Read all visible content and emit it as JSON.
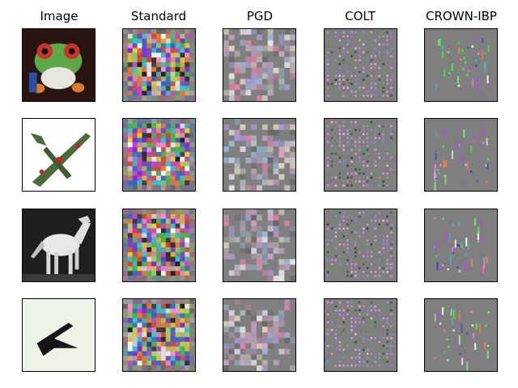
{
  "figure": {
    "columns": [
      {
        "key": "image",
        "title": "Image"
      },
      {
        "key": "standard",
        "title": "Standard"
      },
      {
        "key": "pgd",
        "title": "PGD"
      },
      {
        "key": "colt",
        "title": "COLT"
      },
      {
        "key": "crown_ibp",
        "title": "CROWN-IBP"
      }
    ],
    "rows": [
      {
        "subject": "frog"
      },
      {
        "subject": "airplane"
      },
      {
        "subject": "horse"
      },
      {
        "subject": "bird"
      }
    ],
    "colors": {
      "map_background": "#7f7f7f",
      "image_frog_bg": "#2a1410",
      "image_airplane_bg": "#ffffff",
      "image_horse_bg": "#1e1e1e",
      "image_bird_bg": "#eef3e8"
    }
  }
}
